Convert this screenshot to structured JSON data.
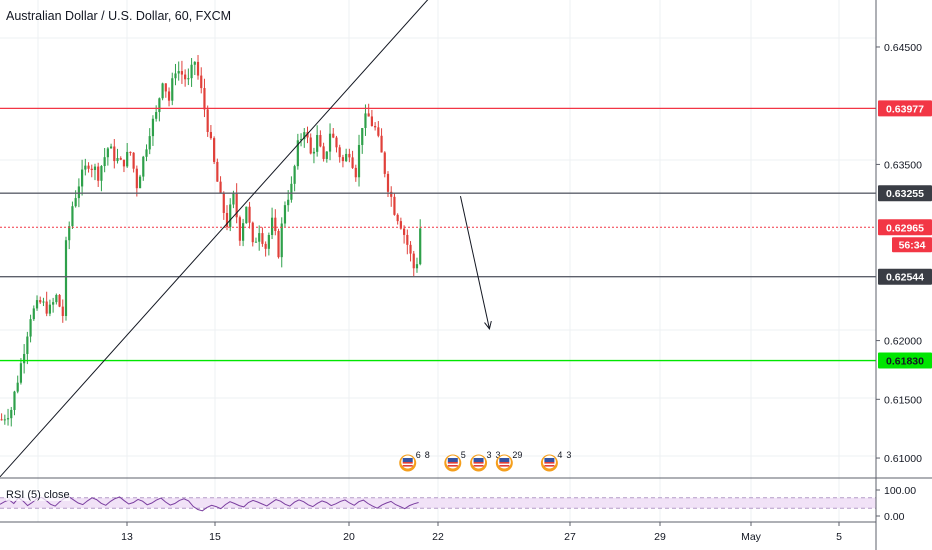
{
  "header": {
    "title": "Australian Dollar / U.S. Dollar, 60, FXCM"
  },
  "rsi_panel": {
    "label": "RSI (5) close"
  },
  "countdown": "56:34",
  "colors": {
    "up": "#26a69a",
    "down": "#ef5350",
    "candle_up": "#2ea04a",
    "candle_down": "#e0403a",
    "resistance": "#f23645",
    "support_green": "#00e600",
    "level_grey": "#5d606b",
    "last_price": "#f23645",
    "rsi_line": "#7b3fa0",
    "rsi_band": "#f1e2f7"
  },
  "chart_data": {
    "type": "candlestick",
    "price_axis": {
      "ticks": [
        "0.64500",
        "0.63500",
        "0.62000",
        "0.61500",
        "0.61000"
      ],
      "range": [
        0.6083,
        0.649
      ]
    },
    "time_axis": {
      "ticks": [
        "13",
        "15",
        "20",
        "22",
        "27",
        "29",
        "May",
        "5"
      ]
    },
    "rsi_axis": {
      "ticks": [
        "100.00",
        "0.00"
      ],
      "range": [
        0,
        100
      ]
    },
    "levels": [
      {
        "price": "0.63977",
        "style": "resistance"
      },
      {
        "price": "0.63255",
        "style": "level"
      },
      {
        "price": "0.62965",
        "style": "last"
      },
      {
        "price": "0.62544",
        "style": "level"
      },
      {
        "price": "0.61830",
        "style": "support"
      }
    ],
    "trendline": {
      "from": {
        "t": 0,
        "price": 0.6084
      },
      "to": {
        "t": 138,
        "price": 0.6506
      }
    },
    "projection_arrow": {
      "from": {
        "t": 143,
        "price": 0.6323
      },
      "to": {
        "t": 152,
        "price": 0.621
      }
    },
    "events": [
      {
        "t": 126,
        "counts": [
          "6",
          "8"
        ]
      },
      {
        "t": 140,
        "counts": [
          "5"
        ]
      },
      {
        "t": 148,
        "counts": [
          "3",
          "3"
        ]
      },
      {
        "t": 156,
        "counts": [
          "29"
        ]
      },
      {
        "t": 170,
        "counts": [
          "4",
          "3"
        ]
      }
    ],
    "close_path": [
      [
        0,
        0.6133
      ],
      [
        3,
        0.6142
      ],
      [
        6,
        0.618
      ],
      [
        9,
        0.6222
      ],
      [
        12,
        0.6232
      ],
      [
        15,
        0.6226
      ],
      [
        17,
        0.6237
      ],
      [
        19,
        0.6222
      ],
      [
        20,
        0.628
      ],
      [
        22,
        0.6315
      ],
      [
        24,
        0.6334
      ],
      [
        27,
        0.6352
      ],
      [
        30,
        0.6342
      ],
      [
        33,
        0.6364
      ],
      [
        37,
        0.635
      ],
      [
        40,
        0.636
      ],
      [
        42,
        0.6333
      ],
      [
        44,
        0.6355
      ],
      [
        46,
        0.638
      ],
      [
        48,
        0.6392
      ],
      [
        50,
        0.6424
      ],
      [
        52,
        0.6405
      ],
      [
        54,
        0.6432
      ],
      [
        56,
        0.6427
      ],
      [
        58,
        0.642
      ],
      [
        60,
        0.6438
      ],
      [
        62,
        0.6412
      ],
      [
        64,
        0.6383
      ],
      [
        66,
        0.635
      ],
      [
        68,
        0.632
      ],
      [
        70,
        0.63
      ],
      [
        72,
        0.6322
      ],
      [
        74,
        0.629
      ],
      [
        76,
        0.6316
      ],
      [
        78,
        0.6279
      ],
      [
        80,
        0.6296
      ],
      [
        82,
        0.628
      ],
      [
        84,
        0.63
      ],
      [
        86,
        0.6276
      ],
      [
        88,
        0.6318
      ],
      [
        90,
        0.633
      ],
      [
        92,
        0.6365
      ],
      [
        94,
        0.6382
      ],
      [
        96,
        0.6358
      ],
      [
        98,
        0.6372
      ],
      [
        100,
        0.635
      ],
      [
        102,
        0.6378
      ],
      [
        104,
        0.6365
      ],
      [
        106,
        0.6352
      ],
      [
        108,
        0.6362
      ],
      [
        110,
        0.6344
      ],
      [
        112,
        0.6385
      ],
      [
        114,
        0.639
      ],
      [
        116,
        0.638
      ],
      [
        118,
        0.6358
      ],
      [
        120,
        0.6332
      ],
      [
        122,
        0.6312
      ],
      [
        124,
        0.63
      ],
      [
        126,
        0.6282
      ],
      [
        128,
        0.6262
      ],
      [
        129,
        0.6268
      ],
      [
        130,
        0.6296
      ]
    ],
    "rsi": {
      "band": [
        30,
        70
      ],
      "values": [
        45,
        55,
        62,
        48,
        70,
        58,
        40,
        52,
        66,
        72,
        60,
        45,
        38,
        55,
        68,
        74,
        62,
        50,
        44,
        58,
        70,
        63,
        49,
        41,
        56,
        67,
        73,
        59,
        46,
        52,
        64,
        57,
        43,
        50,
        61,
        69,
        54,
        42,
        48,
        60,
        66,
        58,
        37,
        25,
        20,
        33,
        41,
        36,
        28,
        44,
        55,
        48,
        40,
        35,
        52,
        60,
        54,
        46,
        39,
        51,
        63,
        57,
        45,
        38,
        53,
        62,
        55,
        43,
        36,
        49,
        58,
        52,
        40,
        47,
        56,
        62,
        50,
        41,
        55,
        61,
        48,
        38,
        30,
        42,
        50,
        56,
        44,
        36,
        28,
        40,
        47,
        52
      ]
    }
  }
}
